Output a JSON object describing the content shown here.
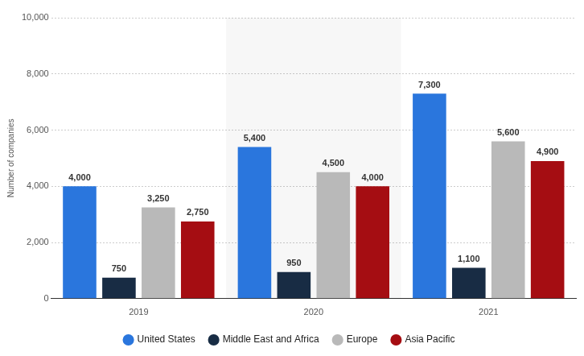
{
  "chart_data": {
    "type": "bar",
    "y_label": "Number of companies",
    "categories": [
      "2019",
      "2020",
      "2021"
    ],
    "series": [
      {
        "name": "United States",
        "color": "#2a76dd",
        "values": [
          4000,
          5400,
          7300
        ],
        "value_labels": [
          "4,000",
          "5,400",
          "7,300"
        ]
      },
      {
        "name": "Middle East and Africa",
        "color": "#182c44",
        "values": [
          750,
          950,
          1100
        ],
        "value_labels": [
          "750",
          "950",
          "1,100"
        ]
      },
      {
        "name": "Europe",
        "color": "#b9b9b9",
        "values": [
          3250,
          4500,
          5600
        ],
        "value_labels": [
          "3,250",
          "4,500",
          "5,600"
        ]
      },
      {
        "name": "Asia Pacific",
        "color": "#a50d12",
        "values": [
          2750,
          4000,
          4900
        ],
        "value_labels": [
          "2,750",
          "4,000",
          "4,900"
        ]
      }
    ],
    "ylim": [
      0,
      10000
    ],
    "yticks": [
      0,
      {
        "value": 2000,
        "label": "2,000"
      },
      {
        "value": 4000,
        "label": "4,000"
      },
      {
        "value": 6000,
        "label": "6,000"
      },
      {
        "value": 8000,
        "label": "8,000"
      },
      {
        "value": 10000,
        "label": "10,000"
      }
    ],
    "grid": true,
    "legend": "bottom",
    "data_labels": true
  }
}
